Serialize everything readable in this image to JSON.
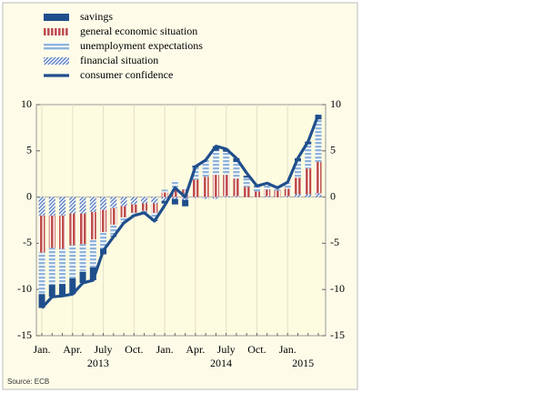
{
  "chart_data": {
    "type": "stacked-bar-line",
    "source": "Source: ECB",
    "categories": [
      "Jan.",
      null,
      null,
      "Apr.",
      null,
      null,
      "July",
      null,
      null,
      "Oct.",
      null,
      null,
      "Jan.",
      null,
      null,
      "Apr.",
      null,
      null,
      "July",
      null,
      null,
      "Oct.",
      null,
      null,
      "Jan.",
      null,
      null,
      null
    ],
    "x_groups": [
      {
        "label": "2013",
        "start": 0,
        "end": 11
      },
      {
        "label": "2014",
        "start": 12,
        "end": 23
      },
      {
        "label": "2015",
        "start": 24,
        "end": 27
      }
    ],
    "series": [
      {
        "name": "savings",
        "color": "#1f4e8c",
        "kind": "bar",
        "values": [
          -1.5,
          -1.3,
          -1.3,
          -1.7,
          -1.2,
          -1.4,
          -0.6,
          -0.1,
          0,
          0,
          0,
          -0.1,
          -0.3,
          -0.6,
          -0.7,
          0.2,
          0,
          0.5,
          0.3,
          0.4,
          0.2,
          0.1,
          0,
          0,
          0,
          0.3,
          0.3,
          0.5
        ]
      },
      {
        "name": "general economic situation",
        "color": "#c0504d",
        "kind": "bar",
        "values": [
          -4,
          -3.5,
          -3.6,
          -3.4,
          -3.3,
          -3,
          -2.4,
          -1.8,
          -1.2,
          -0.9,
          -0.8,
          -1,
          0.5,
          0.8,
          0.8,
          1.9,
          2.2,
          2.4,
          2.3,
          1.9,
          1.1,
          0.6,
          0.7,
          0.7,
          0.8,
          1.8,
          2.8,
          3.4
        ]
      },
      {
        "name": "unemployment expectations",
        "color": "#8fb3d9",
        "kind": "bar",
        "values": [
          -4.5,
          -4,
          -3.8,
          -3.6,
          -3,
          -3,
          -1.8,
          -1.2,
          -0.6,
          -0.3,
          -0.2,
          -0.8,
          0.3,
          1,
          0.2,
          1.3,
          1.8,
          2.6,
          2.5,
          1.8,
          1,
          0.5,
          0.7,
          0.3,
          0.6,
          1.8,
          2.6,
          4.6
        ]
      },
      {
        "name": "financial situation",
        "color": "#5b7fc4",
        "kind": "bar",
        "values": [
          -2,
          -2,
          -2,
          -1.8,
          -1.8,
          -1.6,
          -1.4,
          -1.2,
          -1,
          -0.8,
          -0.7,
          -0.7,
          -0.4,
          -0.2,
          -0.3,
          -0.1,
          -0.2,
          -0.2,
          0.1,
          0.1,
          0,
          0,
          0.1,
          0,
          0.1,
          0.3,
          0.3,
          0.4
        ]
      },
      {
        "name": "consumer confidence",
        "color": "#1f4e8c",
        "kind": "line",
        "values": [
          -12,
          -10.8,
          -10.7,
          -10.5,
          -9.3,
          -9,
          -5.8,
          -4.3,
          -2.8,
          -2,
          -1.7,
          -2.6,
          -0.9,
          1,
          0,
          3.3,
          4,
          5.5,
          5.2,
          4.2,
          2.6,
          1.2,
          1.5,
          1,
          1.6,
          4.2,
          6,
          8.9
        ]
      }
    ],
    "ylim": [
      -15,
      10
    ],
    "yticks": [
      10,
      5,
      0,
      -5,
      -10,
      -15
    ],
    "y2lim": [
      -15,
      10
    ],
    "y2ticks": [
      10,
      5,
      0,
      -5,
      -10,
      -15
    ]
  }
}
